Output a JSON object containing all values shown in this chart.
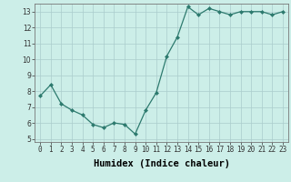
{
  "x": [
    0,
    1,
    2,
    3,
    4,
    5,
    6,
    7,
    8,
    9,
    10,
    11,
    12,
    13,
    14,
    15,
    16,
    17,
    18,
    19,
    20,
    21,
    22,
    23
  ],
  "y": [
    7.7,
    8.4,
    7.2,
    6.8,
    6.5,
    5.9,
    5.7,
    6.0,
    5.9,
    5.3,
    6.8,
    7.9,
    10.2,
    11.4,
    13.3,
    12.8,
    13.2,
    13.0,
    12.8,
    13.0,
    13.0,
    13.0,
    12.8,
    13.0
  ],
  "xlabel": "Humidex (Indice chaleur)",
  "ylim_min": 4.8,
  "ylim_max": 13.5,
  "xlim_min": -0.5,
  "xlim_max": 23.5,
  "yticks": [
    5,
    6,
    7,
    8,
    9,
    10,
    11,
    12,
    13
  ],
  "xticks": [
    0,
    1,
    2,
    3,
    4,
    5,
    6,
    7,
    8,
    9,
    10,
    11,
    12,
    13,
    14,
    15,
    16,
    17,
    18,
    19,
    20,
    21,
    22,
    23
  ],
  "line_color": "#2d7a6e",
  "marker": "D",
  "marker_size": 2.0,
  "bg_color": "#cceee8",
  "grid_color": "#aacccc",
  "tick_label_fontsize": 5.5,
  "xlabel_fontsize": 7.5,
  "xlabel_fontweight": "bold"
}
